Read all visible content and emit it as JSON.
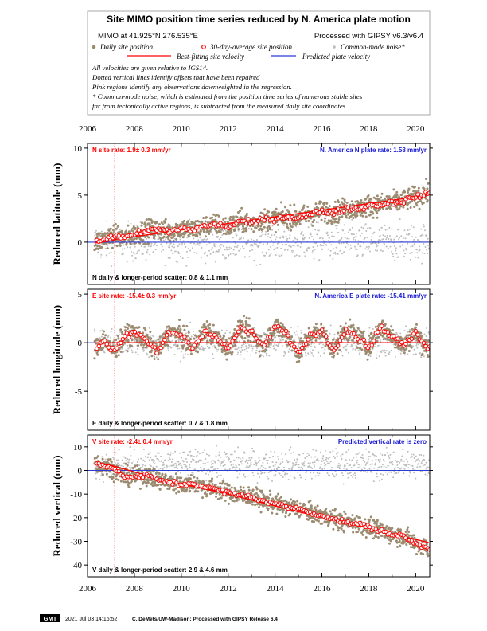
{
  "header": {
    "title": "Site MIMO position time series reduced by N. America plate motion",
    "location": "MIMO at 41.925°N 276.535°E",
    "processing": "Processed with GIPSY v6.3/v6.4",
    "legend": {
      "daily": "Daily site position",
      "avg30": "30-day-average site position",
      "common": "Common-mode noise*",
      "bestfit": "Best-fitting site velocity",
      "predicted": "Predicted plate velocity"
    },
    "notes": [
      "All velocities are given relative to IGS14.",
      "Dotted vertical lines identify offsets that have been repaired",
      "Pink regions identify any observations downweighted in the regression.",
      "* Common-mode noise, which is estimated from the position time series of numerous stable sites",
      "far from tectonically active regions, is subtracted from the measured daily site coordinates."
    ]
  },
  "colors": {
    "daily": "#9b8b70",
    "common": "#bdbdbd",
    "avg_fill": "#ffffff",
    "avg_edge": "#ff0000",
    "bestfit": "#ff0000",
    "predicted": "#2b3bd6",
    "site_rate_text": "#ff0000",
    "plate_rate_text": "#1a1ad6",
    "offset_line": "#ff9a9a"
  },
  "footer": {
    "badge": "GMT",
    "timestamp": "2021 Jul 03 14:16:52",
    "credit": "C. DeMets/UW-Madison: Processed with GIPSY Release 6.4"
  },
  "chart_data": [
    {
      "type": "scatter",
      "component": "N",
      "ylabel": "Reduced latitude (mm)",
      "site_rate_label": "N site rate:  1.9± 0.3 mm/yr",
      "plate_rate_label": "N. America N plate rate: 1.58 mm/yr",
      "scatter_label": "N daily & longer-period scatter:   0.8 &   1.1 mm",
      "xlim": [
        2006,
        2020.6
      ],
      "ylim": [
        -4.5,
        10.5
      ],
      "x_ticks": [
        2006,
        2008,
        2010,
        2012,
        2014,
        2016,
        2018,
        2020
      ],
      "y_ticks": [
        0,
        5,
        10
      ],
      "offset_epoch": 2007.15,
      "bestfit": {
        "x": [
          2006.3,
          2007.15,
          2007.2,
          2020.55
        ],
        "y": [
          -0.1,
          0.2,
          0.3,
          5.0
        ]
      },
      "avg30": {
        "x": [
          2006.4,
          2006.7,
          2007.0,
          2007.3,
          2007.6,
          2008.0,
          2008.5,
          2009.0,
          2009.5,
          2010.0,
          2010.5,
          2011.0,
          2011.5,
          2012.0,
          2012.5,
          2013.0,
          2013.5,
          2014.0,
          2014.5,
          2015.0,
          2015.5,
          2016.0,
          2016.5,
          2017.0,
          2017.5,
          2018.0,
          2018.5,
          2019.0,
          2019.5,
          2020.0,
          2020.5
        ],
        "y": [
          0.0,
          0.3,
          0.7,
          0.6,
          0.4,
          0.8,
          1.2,
          1.4,
          1.1,
          1.5,
          1.3,
          1.7,
          1.9,
          1.6,
          2.2,
          2.0,
          2.4,
          2.5,
          2.7,
          2.6,
          2.9,
          3.3,
          3.1,
          3.6,
          3.5,
          3.9,
          4.0,
          4.2,
          4.4,
          4.8,
          5.2
        ]
      }
    },
    {
      "type": "scatter",
      "component": "E",
      "ylabel": "Reduced longitude (mm)",
      "site_rate_label": "E site rate: -15.4± 0.3 mm/yr",
      "plate_rate_label": "N. America E plate rate: -15.41 mm/yr",
      "scatter_label": "E daily & longer-period scatter:   0.7 &   1.8 mm",
      "xlim": [
        2006,
        2020.6
      ],
      "ylim": [
        -9,
        5.5
      ],
      "x_ticks": [
        2006,
        2008,
        2010,
        2012,
        2014,
        2016,
        2018,
        2020
      ],
      "y_ticks": [
        -5,
        0,
        5
      ],
      "offset_epoch": 2007.15,
      "bestfit": {
        "x": [
          2006.3,
          2020.55
        ],
        "y": [
          0.0,
          0.0
        ]
      },
      "avg30": {
        "x": [
          2006.4,
          2006.7,
          2007.0,
          2007.3,
          2007.6,
          2008.0,
          2008.5,
          2009.0,
          2009.5,
          2010.0,
          2010.5,
          2011.0,
          2011.5,
          2012.0,
          2012.5,
          2013.0,
          2013.5,
          2014.0,
          2014.5,
          2015.0,
          2015.5,
          2016.0,
          2016.5,
          2017.0,
          2017.5,
          2018.0,
          2018.5,
          2019.0,
          2019.5,
          2020.0,
          2020.5
        ],
        "y": [
          -0.5,
          0.4,
          -0.8,
          -0.3,
          0.6,
          1.0,
          0.2,
          -0.9,
          1.1,
          0.8,
          -0.6,
          1.3,
          0.5,
          -0.7,
          1.5,
          1.0,
          -0.4,
          1.7,
          0.9,
          -1.2,
          0.8,
          1.2,
          -0.8,
          1.4,
          0.6,
          -0.5,
          1.6,
          0.7,
          -0.3,
          1.0,
          -0.6
        ]
      }
    },
    {
      "type": "scatter",
      "component": "V",
      "ylabel": "Reduced vertical (mm)",
      "site_rate_label": "V site rate:  -2.4± 0.4 mm/yr",
      "plate_rate_label": "Predicted vertical rate is zero",
      "scatter_label": "V daily & longer-period scatter:   2.9 &   4.6 mm",
      "xlim": [
        2006,
        2020.6
      ],
      "ylim": [
        -45,
        15
      ],
      "x_ticks": [
        2006,
        2008,
        2010,
        2012,
        2014,
        2016,
        2018,
        2020
      ],
      "y_ticks": [
        -40,
        -30,
        -20,
        -10,
        0,
        10
      ],
      "offset_epoch": 2007.15,
      "bestfit": {
        "x": [
          2006.3,
          2007.15,
          2009.0,
          2012.0,
          2015.0,
          2018.0,
          2020.55
        ],
        "y": [
          3.5,
          1.8,
          -3.5,
          -10.0,
          -17.5,
          -24.5,
          -30.5
        ]
      },
      "avg30": {
        "x": [
          2006.4,
          2006.7,
          2007.0,
          2007.3,
          2007.6,
          2008.0,
          2008.5,
          2009.0,
          2009.5,
          2010.0,
          2010.5,
          2011.0,
          2011.5,
          2012.0,
          2012.5,
          2013.0,
          2013.5,
          2014.0,
          2014.5,
          2015.0,
          2015.5,
          2016.0,
          2016.5,
          2017.0,
          2017.5,
          2018.0,
          2018.5,
          2019.0,
          2019.5,
          2020.0,
          2020.5
        ],
        "y": [
          3.0,
          2.0,
          1.5,
          -1.0,
          -2.5,
          -3.0,
          -2.0,
          -4.0,
          -5.0,
          -6.0,
          -5.5,
          -7.0,
          -8.0,
          -9.5,
          -10.5,
          -11.0,
          -13.0,
          -14.0,
          -15.5,
          -16.0,
          -18.0,
          -19.0,
          -20.5,
          -22.0,
          -22.5,
          -24.0,
          -25.5,
          -27.0,
          -28.0,
          -31.0,
          -33.0
        ]
      }
    }
  ]
}
